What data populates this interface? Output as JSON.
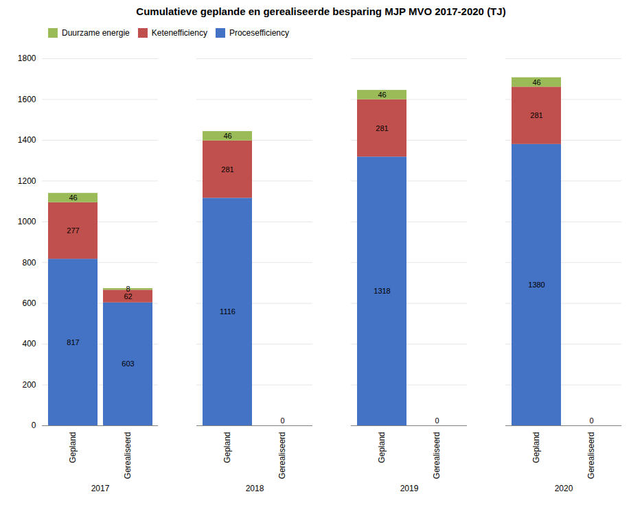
{
  "chart_data": {
    "type": "bar",
    "title": "Cumulatieve geplande en gerealiseerde besparing MJP MVO 2017-2020 (TJ)",
    "stacked": true,
    "data_labels": true,
    "grid": true,
    "legend": "top",
    "categories": [
      "Gepland",
      "Gerealiseerd",
      "Gepland",
      "Gerealiseerd",
      "Gepland",
      "Gerealiseerd",
      "Gepland",
      "Gerealiseerd"
    ],
    "groups": [
      2017,
      2017,
      2018,
      2018,
      2019,
      2019,
      2020,
      2020
    ],
    "series": [
      {
        "name": "Procesefficiency",
        "color": "#4472C4",
        "values": [
          817,
          603,
          1116,
          0,
          1318,
          0,
          1380,
          0
        ],
        "value_labels": [
          "817",
          "603",
          "1116",
          "0",
          "1318",
          "0",
          "1380",
          "0"
        ]
      },
      {
        "name": "Ketenefficiency",
        "color": "#C0504D",
        "values": [
          277,
          62,
          281,
          0,
          281,
          0,
          281,
          0
        ],
        "value_labels": [
          "277",
          "62",
          "281",
          null,
          "281",
          null,
          "281",
          null
        ]
      },
      {
        "name": "Duurzame energie",
        "color": "#9BBB59",
        "values": [
          46,
          8,
          46,
          0,
          46,
          0,
          46,
          0
        ],
        "value_labels": [
          "46",
          "8",
          "46",
          null,
          "46",
          null,
          "46",
          null
        ]
      }
    ],
    "ylim": [
      0,
      1800
    ],
    "yticks": [
      0,
      200,
      400,
      600,
      800,
      1000,
      1200,
      1400,
      1600,
      1800
    ]
  }
}
